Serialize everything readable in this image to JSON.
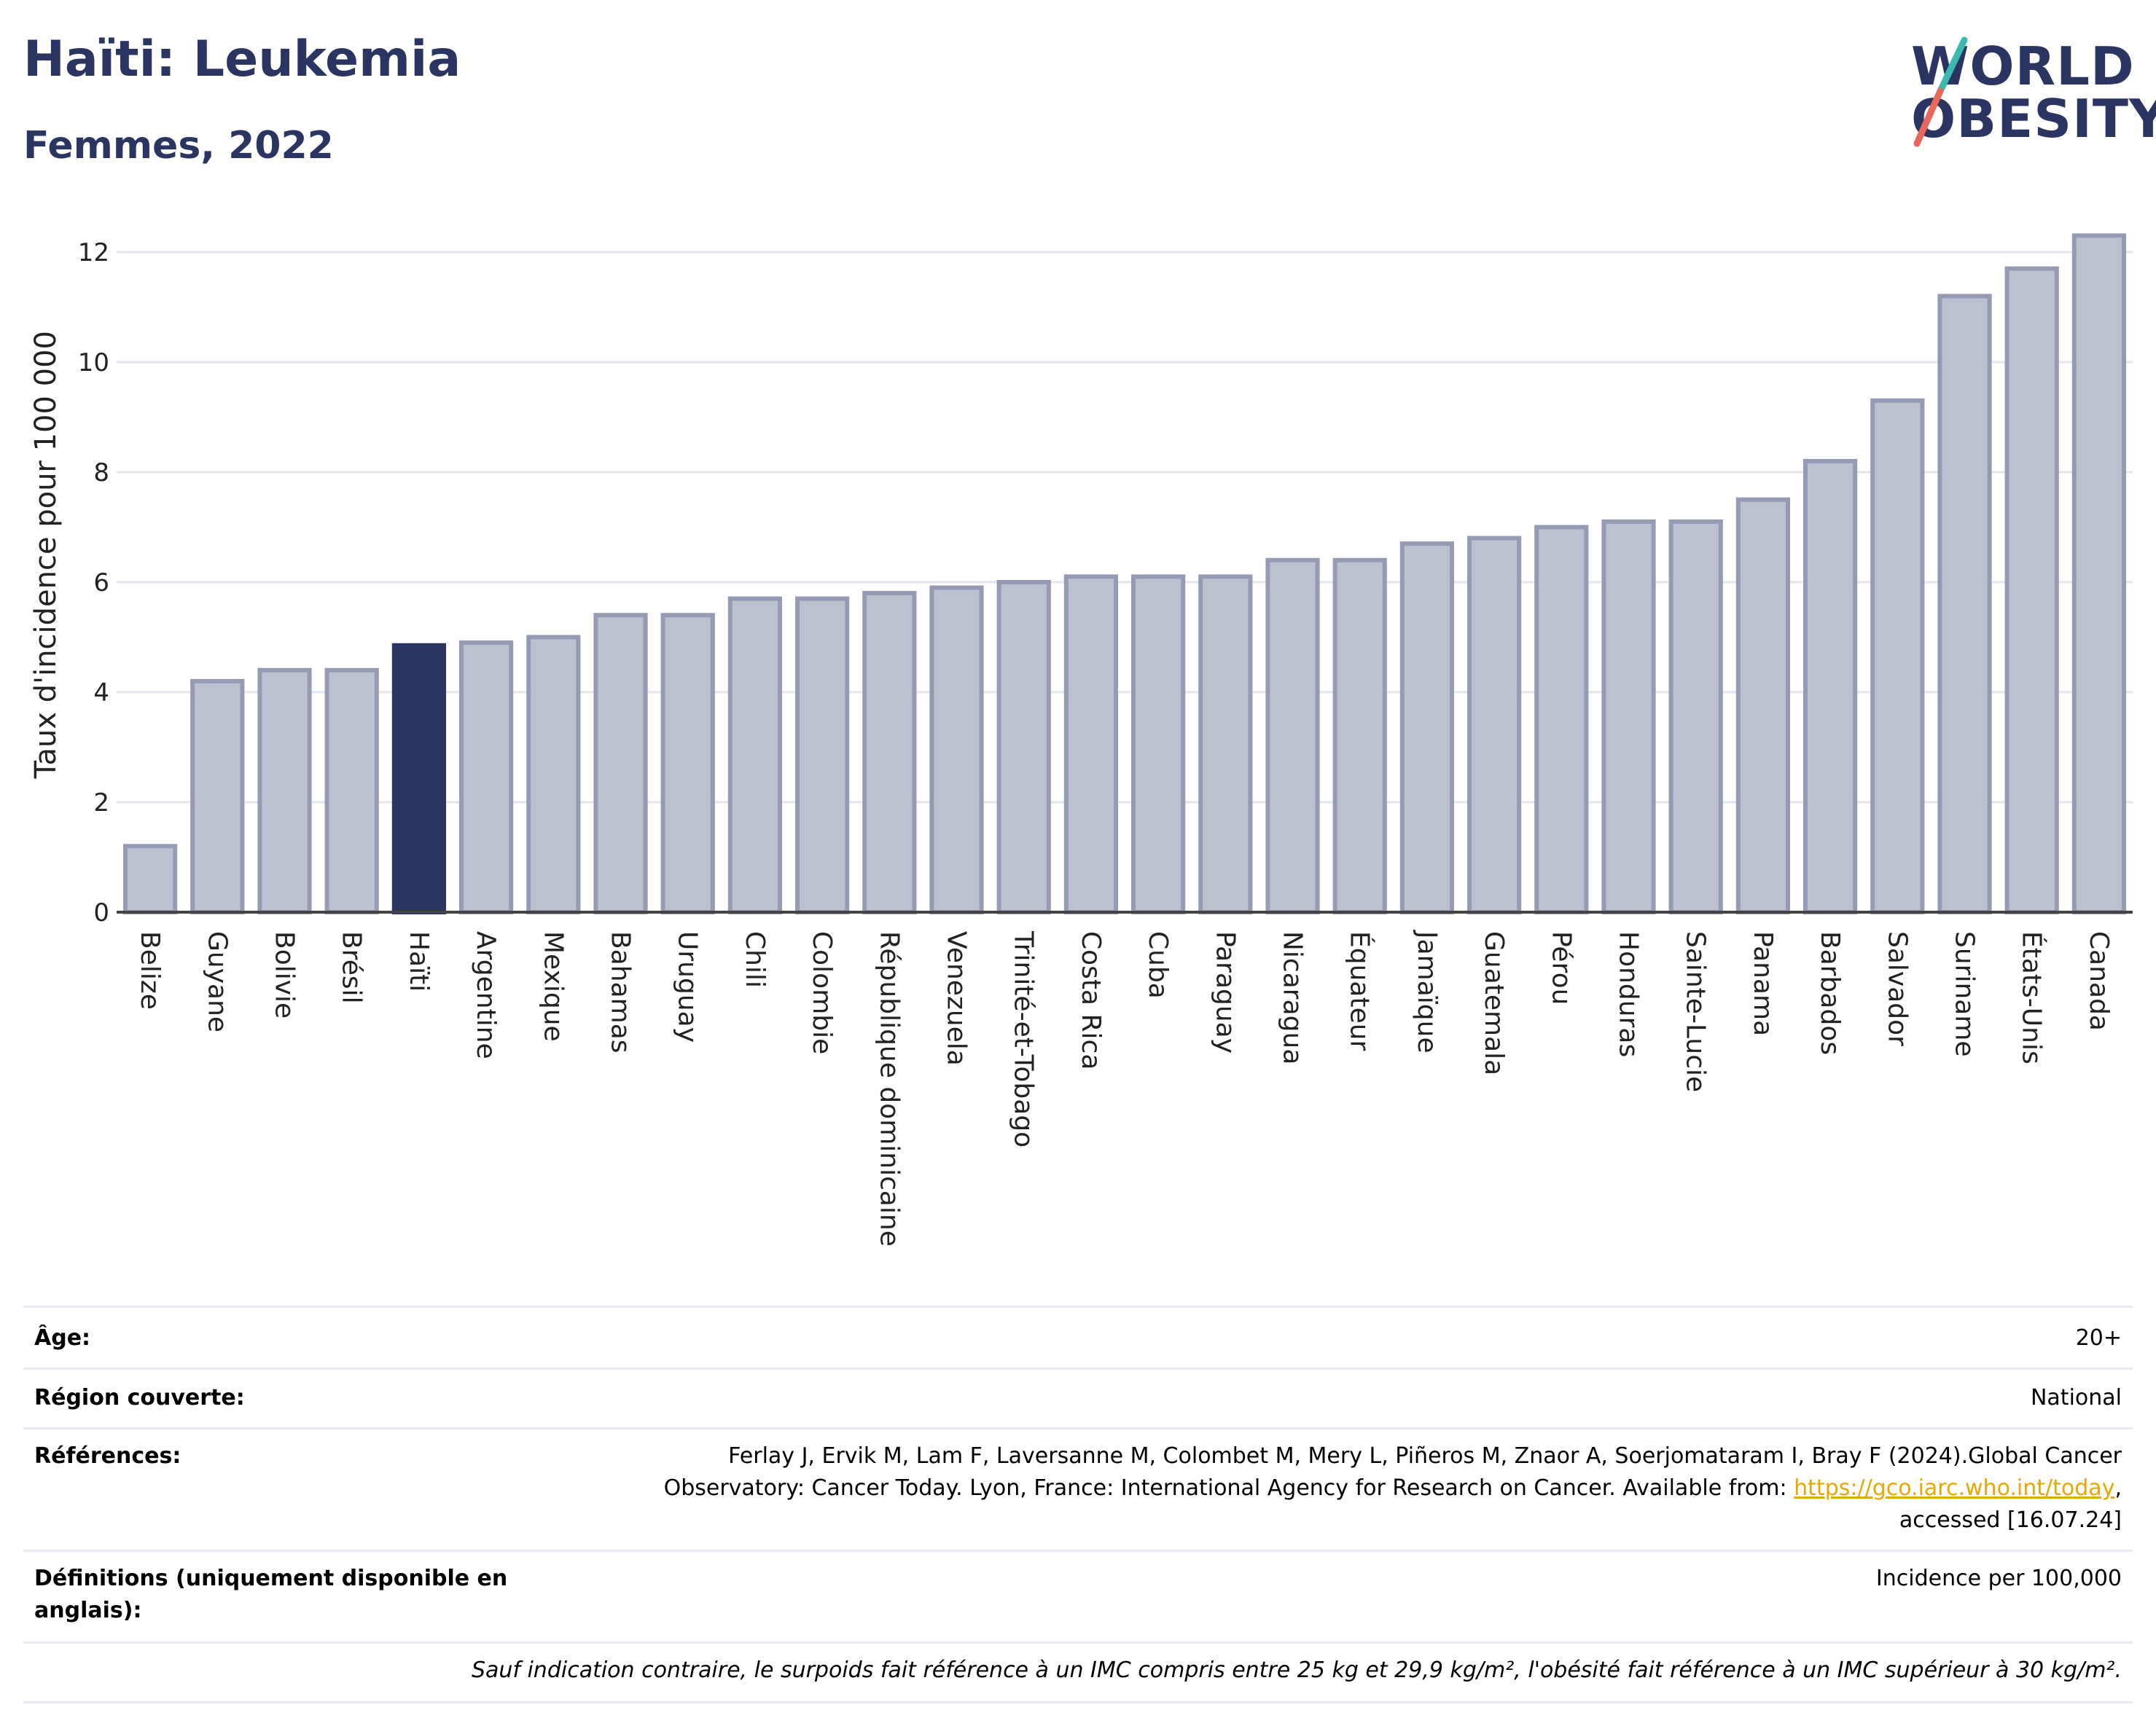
{
  "header": {
    "title": "Haïti: Leukemia",
    "subtitle": "Femmes, 2022"
  },
  "logo": {
    "line1": "WORLD",
    "line2": "OBESITY",
    "colors": {
      "navy": "#2a3561",
      "teal": "#3bb8b0",
      "coral": "#e8675a"
    }
  },
  "chart_data": {
    "type": "bar",
    "ylabel": "Taux d'incidence pour 100 000",
    "ylim": [
      0,
      13
    ],
    "yticks": [
      0,
      2,
      4,
      6,
      8,
      10,
      12
    ],
    "grid": true,
    "highlight": "Haïti",
    "colors": {
      "bar": "#bdc1cf",
      "bar_border": "#959bb5",
      "highlight": "#2a3561",
      "grid": "#e4e6ee",
      "axis": "#444444"
    },
    "categories": [
      "Belize",
      "Guyane",
      "Bolivie",
      "Brésil",
      "Haïti",
      "Argentine",
      "Mexique",
      "Bahamas",
      "Uruguay",
      "Chili",
      "Colombie",
      "République dominicaine",
      "Venezuela",
      "Trinité-et-Tobago",
      "Costa Rica",
      "Cuba",
      "Paraguay",
      "Nicaragua",
      "Équateur",
      "Jamaïque",
      "Guatemala",
      "Pérou",
      "Honduras",
      "Sainte-Lucie",
      "Panama",
      "Barbados",
      "Salvador",
      "Suriname",
      "États-Unis",
      "Canada"
    ],
    "values": [
      1.2,
      4.2,
      4.4,
      4.4,
      4.85,
      4.9,
      5.0,
      5.4,
      5.4,
      5.7,
      5.7,
      5.8,
      5.9,
      6.0,
      6.1,
      6.1,
      6.1,
      6.4,
      6.4,
      6.7,
      6.8,
      7.0,
      7.1,
      7.1,
      7.5,
      8.2,
      9.3,
      11.2,
      11.7,
      12.3
    ]
  },
  "meta": {
    "age_label": "Âge:",
    "age_value": "20+",
    "region_label": "Région couverte:",
    "region_value": "National",
    "refs_label": "Références:",
    "refs_line1": "Ferlay J, Ervik M, Lam F, Laversanne M, Colombet M, Mery L, Piñeros M, Znaor A, Soerjomataram I, Bray F (2024).Global Cancer",
    "refs_line2_pre": "Observatory: Cancer Today. Lyon, France: International Agency for Research on Cancer. Available from: ",
    "refs_link": "https://gco.iarc.who.int/today",
    "refs_line2_post": ",",
    "refs_line3": "accessed [16.07.24]",
    "defs_label": "Définitions (uniquement disponible en anglais):",
    "defs_value": "Incidence per 100,000",
    "note": "Sauf indication contraire, le surpoids fait référence à un IMC compris entre 25 kg et 29,9 kg/m², l'obésité fait référence à un IMC supérieur à 30 kg/m²."
  }
}
